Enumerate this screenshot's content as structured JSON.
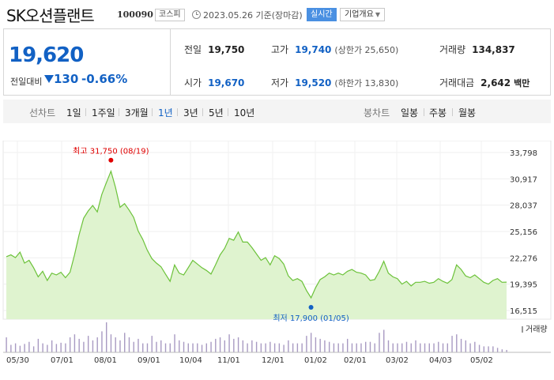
{
  "header": {
    "stock_name": "SK오션플랜트",
    "stock_code": "100090",
    "market": "코스피",
    "date": "2023.05.26 기준(장마감)",
    "realtime": "실시간",
    "company_overview": "기업개요"
  },
  "price": {
    "current": "19,620",
    "change_label": "전일대비",
    "change_value": "130",
    "change_pct": "-0.66%"
  },
  "stats": {
    "prev_close_label": "전일",
    "prev_close": "19,750",
    "high_label": "고가",
    "high": "19,740",
    "upper_limit": "(상한가 25,650)",
    "volume_label": "거래량",
    "volume": "134,837",
    "open_label": "시가",
    "open": "19,670",
    "low_label": "저가",
    "low": "19,520",
    "lower_limit": "(하한가 13,830)",
    "amount_label": "거래대금",
    "amount": "2,642",
    "amount_unit": "백만"
  },
  "tabs": {
    "line_chart_label": "선차트",
    "periods": [
      "1일",
      "1주일",
      "3개월",
      "1년",
      "3년",
      "5년",
      "10년"
    ],
    "active_period": "1년",
    "candle_chart_label": "봉차트",
    "candles": [
      "일봉",
      "주봉",
      "월봉"
    ]
  },
  "colors": {
    "accent": "#1261c4",
    "line": "#6cc23a",
    "area": "#dff3cf",
    "high_marker": "#e00000",
    "low_marker": "#1261c4",
    "volume_bar": "#a89ac2"
  },
  "chart_data": {
    "type": "area",
    "y_ticks": [
      "33,798",
      "30,917",
      "28,037",
      "25,156",
      "22,276",
      "19,395",
      "16,515"
    ],
    "ylim": [
      16515,
      33798
    ],
    "x_ticks": [
      "05/30",
      "07/01",
      "08/01",
      "09/01",
      "10/04",
      "11/01",
      "12/01",
      "01/02",
      "02/01",
      "03/02",
      "04/03",
      "05/02"
    ],
    "high_annotation": "최고 31,750 (08/19)",
    "low_annotation": "최저 17,900 (01/05)",
    "volume_legend": "거래량",
    "series": [
      {
        "values": [
          22400,
          22600,
          22300,
          22900,
          21700,
          22000,
          21200,
          20200,
          20800,
          19800,
          20600,
          20400,
          20700,
          20100,
          20700,
          22600,
          24800,
          26600,
          27400,
          28000,
          27300,
          29200,
          30500,
          31750,
          30000,
          27800,
          28200,
          27500,
          26700,
          25200,
          24300,
          23100,
          22200,
          21700,
          21300,
          20500,
          19700,
          21500,
          20600,
          20400,
          21200,
          22000,
          21600,
          21200,
          20900,
          20500,
          21500,
          22600,
          23300,
          24400,
          24200,
          25100,
          24000,
          24000,
          23400,
          22700,
          22000,
          22300,
          21500,
          22500,
          22200,
          21600,
          20300,
          19800,
          20000,
          19700,
          18700,
          17900,
          19000,
          19900,
          20200,
          20600,
          20400,
          20600,
          20400,
          20800,
          21000,
          20700,
          20600,
          20400,
          19800,
          19900,
          20800,
          21900,
          20600,
          20200,
          20000,
          19400,
          19700,
          19200,
          19600,
          19600,
          19700,
          19500,
          19600,
          20000,
          19700,
          19500,
          19900,
          21500,
          21000,
          20300,
          20100,
          20400,
          20000,
          19600,
          19400,
          19800,
          20000,
          19600,
          19620
        ]
      }
    ],
    "volume": [
      0.5,
      0.25,
      0.3,
      0.22,
      0.28,
      0.35,
      0.2,
      0.45,
      0.3,
      0.25,
      0.4,
      0.28,
      0.32,
      0.3,
      0.5,
      0.6,
      0.45,
      0.35,
      0.55,
      0.4,
      0.5,
      0.7,
      1.0,
      0.6,
      0.5,
      0.4,
      0.65,
      0.5,
      0.35,
      0.45,
      0.3,
      0.3,
      0.55,
      0.35,
      0.4,
      0.3,
      0.3,
      0.6,
      0.4,
      0.35,
      0.3,
      0.3,
      0.3,
      0.25,
      0.3,
      0.35,
      0.45,
      0.5,
      0.4,
      0.6,
      0.45,
      0.5,
      0.4,
      0.3,
      0.4,
      0.35,
      0.3,
      0.3,
      0.35,
      0.3,
      0.3,
      0.25,
      0.4,
      0.3,
      0.3,
      0.3,
      0.55,
      0.65,
      0.5,
      0.45,
      0.4,
      0.35,
      0.3,
      0.3,
      0.3,
      0.45,
      0.3,
      0.3,
      0.3,
      0.35,
      0.35,
      0.3,
      0.65,
      0.75,
      0.4,
      0.3,
      0.3,
      0.3,
      0.35,
      0.3,
      0.4,
      0.3,
      0.3,
      0.3,
      0.3,
      0.35,
      0.3,
      0.3,
      0.55,
      0.6,
      0.45,
      0.4,
      0.3,
      0.35,
      0.25,
      0.2,
      0.2,
      0.2,
      0.15,
      0.1,
      0.08
    ],
    "grid": true
  }
}
